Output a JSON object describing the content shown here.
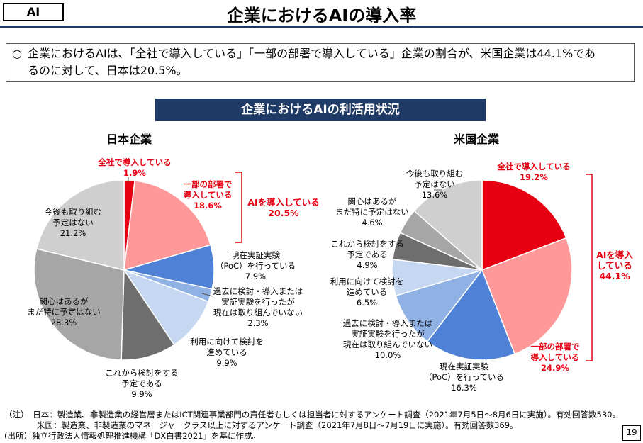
{
  "tag": "AI",
  "title": "企業におけるAIの導入率",
  "summary": {
    "bullet": "○",
    "line1": "企業におけるAIは、「全社で導入している」「一部の部署で導入している」企業の割合が、米国企業は44.1%であ",
    "line2": "るのに対して、日本は20.5%。"
  },
  "banner": "企業におけるAIの利活用状況",
  "chart_data": [
    {
      "type": "pie",
      "title": "日本企業",
      "slices": [
        {
          "label": "全社で導入している",
          "value": 1.9,
          "color": "#e60012"
        },
        {
          "label": "一部の部署で導入している",
          "value": 18.6,
          "color": "#ff9999"
        },
        {
          "label": "現在実証実験（PoC）を行っている",
          "value": 7.9,
          "color": "#4f81d6"
        },
        {
          "label": "過去に検討・導入または実証実験を行ったが現在は取り組んでいない",
          "value": 2.3,
          "color": "#8fb1e3"
        },
        {
          "label": "利用に向けて検討を進めている",
          "value": 9.9,
          "color": "#c6d7f1"
        },
        {
          "label": "これから検討をする予定である",
          "value": 9.9,
          "color": "#6e6e6e"
        },
        {
          "label": "関心はあるがまだ特に予定はない",
          "value": 28.3,
          "color": "#a6a6a6"
        },
        {
          "label": "今後も取り組む予定はない",
          "value": 21.2,
          "color": "#cfcfcf"
        }
      ],
      "bracket": {
        "label": "AIを導入している",
        "value": "20.5%"
      }
    },
    {
      "type": "pie",
      "title": "米国企業",
      "slices": [
        {
          "label": "全社で導入している",
          "value": 19.2,
          "color": "#e60012"
        },
        {
          "label": "一部の部署で導入している",
          "value": 24.9,
          "color": "#ff9999"
        },
        {
          "label": "現在実証実験（PoC）を行っている",
          "value": 16.3,
          "color": "#4f81d6"
        },
        {
          "label": "過去に検討・導入または実証実験を行ったが現在は取り組んでいない",
          "value": 10.0,
          "color": "#8fb1e3"
        },
        {
          "label": "利用に向けて検討を進めている",
          "value": 6.5,
          "color": "#c6d7f1"
        },
        {
          "label": "これから検討をする予定である",
          "value": 4.9,
          "color": "#6e6e6e"
        },
        {
          "label": "関心はあるがまだ特に予定はない",
          "value": 4.6,
          "color": "#a6a6a6"
        },
        {
          "label": "今後も取り組む予定はない",
          "value": 13.6,
          "color": "#cfcfcf"
        }
      ],
      "bracket": {
        "label": "AIを導入している",
        "value": "44.1%"
      }
    }
  ],
  "labels": {
    "jp": {
      "s0": [
        "全社で導入している",
        "1.9%"
      ],
      "s1": [
        "一部の部署で",
        "導入している",
        "18.6%"
      ],
      "bracket": [
        "AIを導入している",
        "20.5%"
      ],
      "s2": [
        "現在実証実験",
        "（PoC）を行っている",
        "7.9%"
      ],
      "s3": [
        "過去に検討・導入または",
        "実証実験を行ったが",
        "現在は取り組んでいない",
        "2.3%"
      ],
      "s4": [
        "利用に向けて検討を",
        "進めている",
        "9.9%"
      ],
      "s5": [
        "これから検討をする",
        "予定である",
        "9.9%"
      ],
      "s6": [
        "関心はあるが",
        "まだ特に予定はない",
        "28.3%"
      ],
      "s7": [
        "今後も取り組む",
        "予定はない",
        "21.2%"
      ]
    },
    "us": {
      "s0": [
        "全社で導入している",
        "19.2%"
      ],
      "s1": [
        "一部の部署で",
        "導入している",
        "24.9%"
      ],
      "bracket": [
        "AIを導入",
        "している",
        "44.1%"
      ],
      "s2": [
        "現在実証実験",
        "（PoC）を行っている",
        "16.3%"
      ],
      "s3": [
        "過去に検討・導入または",
        "実証実験を行ったが",
        "現在は取り組んでいない",
        "10.0%"
      ],
      "s4": [
        "利用に向けて検討を",
        "進めている",
        "6.5%"
      ],
      "s5": [
        "これから検討をする",
        "予定である",
        "4.9%"
      ],
      "s6": [
        "関心はあるが",
        "まだ特に予定はない",
        "4.6%"
      ],
      "s7": [
        "今後も取り組む",
        "予定はない",
        "13.6%"
      ]
    }
  },
  "footer": {
    "line1": "（注）　日本：製造業、非製造業の経営層またはICT関連事業部門の責任者もしくは担当者に対するアンケート調査（2021年7月5日～8月6日に実施）。有効回答数530。",
    "line2": "　　　　米国：製造業、非製造業のマネージャークラス以上に対するアンケート調査（2021年7月8日～7月19日に実施）。有効回答数369。",
    "line3": "(出所）独立行政法人情報処理推進機構「DX白書2021」を基に作成。"
  },
  "page_number": "19"
}
